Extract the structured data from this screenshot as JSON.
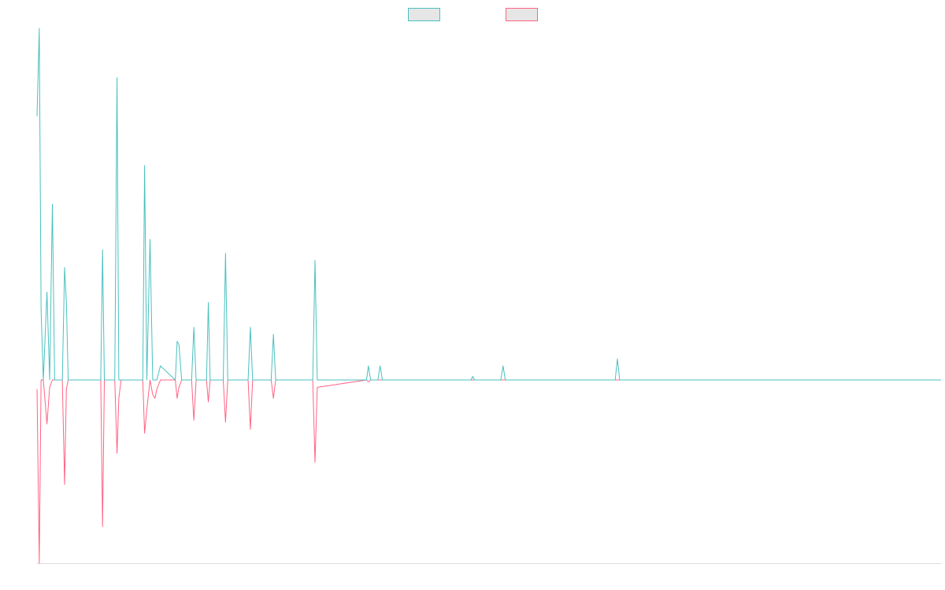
{
  "chart_data": {
    "type": "line",
    "title": "",
    "xlabel": "",
    "ylabel": "",
    "grid": false,
    "legend_position": "top-center",
    "xlim": [
      0,
      100
    ],
    "ylim": [
      -100,
      100
    ],
    "baseline": 0,
    "series": [
      {
        "color": "#4bc0c0",
        "fill": "#e6e6e6",
        "x": [
          0,
          0.25,
          0.45,
          0.7,
          1.1,
          1.4,
          1.7,
          1.95,
          2.3,
          2.8,
          3.05,
          3.25,
          3.45,
          3.6,
          7.05,
          7.25,
          7.45,
          8.6,
          8.85,
          9.05,
          9.3,
          11.7,
          11.9,
          12.15,
          12.5,
          12.8,
          13.05,
          13.25,
          13.65,
          15.3,
          15.5,
          15.7,
          16.0,
          16.25,
          17.1,
          17.35,
          17.6,
          18.75,
          18.95,
          19.15,
          19.5,
          20.6,
          20.85,
          21.1,
          21.5,
          23.35,
          23.6,
          23.85,
          25.9,
          26.15,
          26.4,
          30.5,
          30.75,
          31.0,
          36.45,
          36.65,
          36.9,
          37.7,
          37.95,
          38.2,
          48.0,
          48.2,
          48.4,
          51.3,
          51.55,
          51.8,
          63.95,
          64.2,
          64.45,
          100
        ],
        "y": [
          75,
          100,
          20,
          0,
          25,
          0,
          50,
          0,
          0,
          0,
          32,
          22,
          0,
          0,
          0,
          37,
          0,
          0,
          86,
          0,
          0,
          0,
          61,
          0,
          40,
          0,
          0,
          0,
          4,
          0,
          11,
          10,
          0,
          0,
          0,
          15,
          0,
          0,
          22,
          0,
          0,
          0,
          36,
          0,
          0,
          0,
          15,
          0,
          0,
          13,
          0,
          0,
          34,
          0,
          0,
          4,
          0,
          0,
          4,
          0,
          0,
          1,
          0,
          0,
          4,
          0,
          0,
          6,
          0,
          0
        ]
      },
      {
        "color": "#ff6384",
        "fill": "#e6e6e6",
        "x": [
          0,
          0.25,
          0.45,
          0.7,
          1.1,
          1.4,
          1.7,
          1.95,
          2.3,
          2.8,
          3.05,
          3.25,
          3.45,
          3.6,
          7.05,
          7.25,
          7.45,
          8.6,
          8.85,
          9.05,
          9.3,
          11.7,
          11.9,
          12.15,
          12.5,
          12.8,
          13.05,
          13.25,
          13.65,
          15.3,
          15.5,
          15.7,
          16.0,
          16.25,
          17.1,
          17.35,
          17.6,
          18.75,
          18.95,
          19.15,
          19.5,
          20.6,
          20.85,
          21.1,
          21.5,
          23.35,
          23.6,
          23.85,
          25.9,
          26.15,
          26.4,
          30.5,
          30.75,
          31.0,
          36.45,
          36.65,
          36.9,
          37.7,
          37.95,
          38.2,
          48.0,
          48.2,
          48.4,
          51.3,
          51.55,
          51.8,
          63.95,
          64.2,
          64.45,
          100
        ],
        "y": [
          -5,
          -100,
          0,
          0,
          -24,
          -4,
          0,
          0,
          0,
          0,
          -57,
          -5,
          0,
          0,
          0,
          -80,
          0,
          0,
          -40,
          -10,
          0,
          0,
          -29,
          -16,
          0,
          -8,
          -10,
          -5,
          0,
          0,
          -10,
          -4,
          0,
          0,
          0,
          -22,
          0,
          0,
          -12,
          0,
          0,
          0,
          -23,
          0,
          0,
          0,
          -27,
          0,
          0,
          -10,
          0,
          0,
          -45,
          -4,
          0,
          -1,
          0,
          0,
          0,
          0,
          0,
          0,
          0,
          0,
          0,
          0,
          0,
          0,
          0,
          0
        ]
      }
    ]
  }
}
